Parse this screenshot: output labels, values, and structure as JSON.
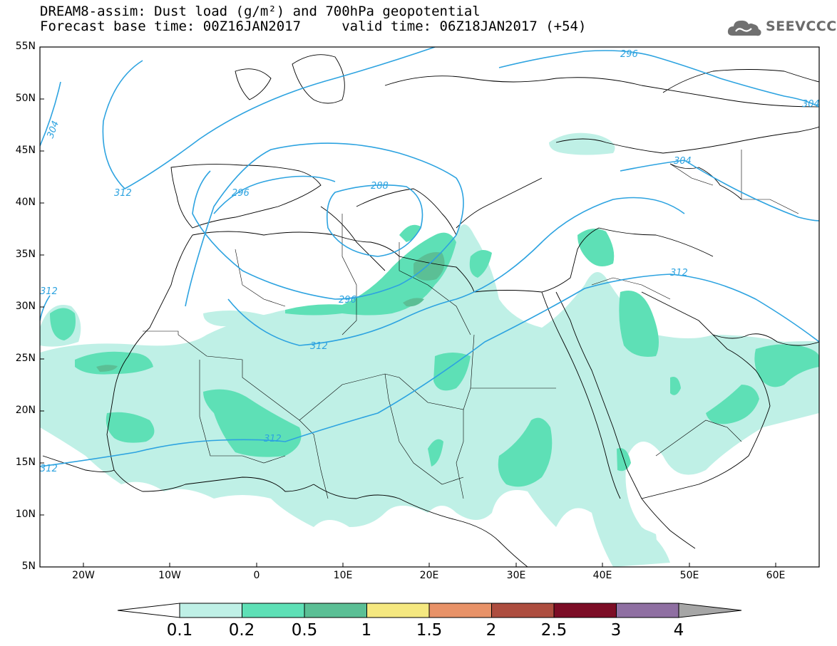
{
  "title": {
    "line1": "DREAM8-assim: Dust load (g/m²) and 700hPa geopotential",
    "line2": "Forecast base time: 00Z16JAN2017     valid time: 06Z18JAN2017 (+54)"
  },
  "logo": {
    "text": "SEEVCCC",
    "icon": "cloud-icon"
  },
  "axes": {
    "lat_labels": [
      "55N",
      "50N",
      "45N",
      "40N",
      "35N",
      "30N",
      "25N",
      "20N",
      "15N",
      "10N",
      "5N"
    ],
    "lon_labels": [
      "20W",
      "10W",
      "0",
      "10E",
      "20E",
      "30E",
      "40E",
      "50E",
      "60E"
    ]
  },
  "contour_labels": [
    "296",
    "304",
    "304",
    "312",
    "312",
    "312",
    "312",
    "288",
    "296",
    "296",
    "304",
    "312",
    "312"
  ],
  "colorbar": {
    "labels": [
      "0.1",
      "0.2",
      "0.5",
      "1",
      "1.5",
      "2",
      "2.5",
      "3",
      "4"
    ],
    "colors": [
      "#bff0e6",
      "#5ee0b6",
      "#5bbf95",
      "#f5e880",
      "#e89268",
      "#ad4d3f",
      "#7c0d26",
      "#8f6fa2"
    ],
    "under_color": "#ffffff",
    "over_color": "#a6a6a6"
  },
  "colors": {
    "contour": "#2da3e0",
    "dust_light": "#bff0e6",
    "dust_mid": "#5ee0b6",
    "dust_dark": "#5bbf95",
    "border": "#000000"
  }
}
